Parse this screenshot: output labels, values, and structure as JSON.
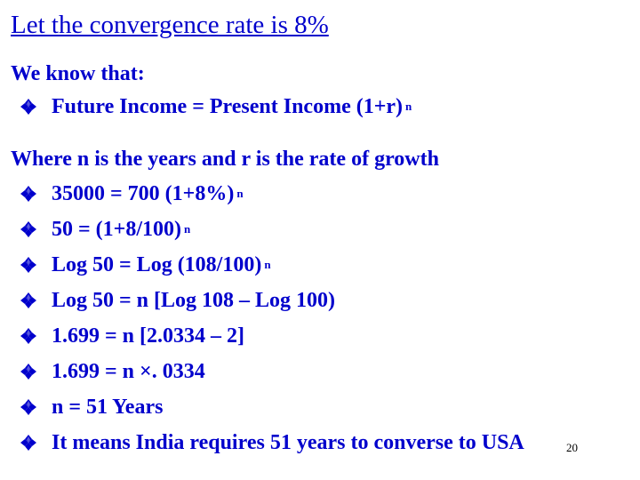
{
  "title": "Let the convergence rate is 8%",
  "intro": "We know that:",
  "formula": {
    "text": "Future Income = Present Income (1+r)",
    "sup": "n"
  },
  "where_text": "Where n is the years and r is the rate of growth",
  "steps": [
    {
      "text": "35000 = 700 (1+8%)",
      "sup": "n"
    },
    {
      "text": "50 = (1+8/100)",
      "sup": "n"
    },
    {
      "text": "Log 50 = Log (108/100)",
      "sup": "n"
    },
    {
      "text": "Log 50 = n [Log 108 – Log 100)",
      "sup": ""
    },
    {
      "text": "1.699 = n [2.0334 – 2]",
      "sup": ""
    },
    {
      "text": "1.699 = n ×. 0334",
      "sup": ""
    },
    {
      "text": "n = 51 Years",
      "sup": ""
    },
    {
      "text": "It means India requires 51 years to converse to USA",
      "sup": ""
    }
  ],
  "bullet_icon": "diamond-bullet-icon",
  "colors": {
    "text": "#0000cc",
    "bullet": "#0000cc"
  },
  "page_number": "20"
}
